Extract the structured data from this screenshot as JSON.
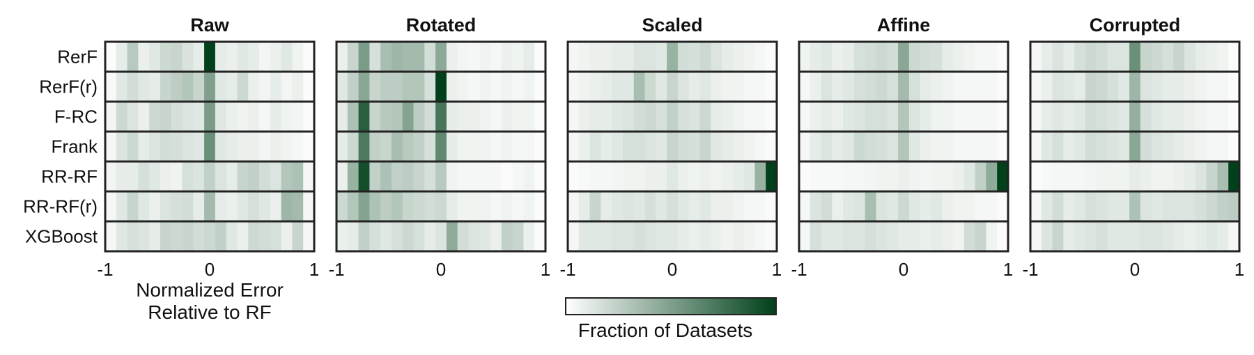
{
  "chart_data": {
    "type": "heatmap",
    "panels": [
      "Raw",
      "Rotated",
      "Scaled",
      "Affine",
      "Corrupted"
    ],
    "rows": [
      "RerF",
      "RerF(r)",
      "F-RC",
      "Frank",
      "RR-RF",
      "RR-RF(r)",
      "XGBoost"
    ],
    "x_ticks": [
      "-1",
      "0",
      "1"
    ],
    "xlim": [
      -1,
      1
    ],
    "n_bins": 19,
    "xlabel": "Normalized Error\nRelative to RF",
    "colorbar_label": "Fraction of Datasets",
    "colormap": [
      "#ffffff",
      "#00401a"
    ],
    "values": {
      "Raw": [
        [
          0.02,
          0.1,
          0.28,
          0.08,
          0.12,
          0.2,
          0.22,
          0.15,
          0.1,
          1.0,
          0.1,
          0.08,
          0.12,
          0.1,
          0.05,
          0.08,
          0.12,
          0.06,
          0.02
        ],
        [
          0.03,
          0.12,
          0.18,
          0.12,
          0.1,
          0.22,
          0.26,
          0.3,
          0.22,
          0.5,
          0.12,
          0.1,
          0.2,
          0.08,
          0.05,
          0.1,
          0.05,
          0.08,
          0.02
        ],
        [
          0.05,
          0.2,
          0.14,
          0.08,
          0.2,
          0.22,
          0.16,
          0.14,
          0.12,
          0.52,
          0.12,
          0.08,
          0.06,
          0.08,
          0.04,
          0.1,
          0.06,
          0.05,
          0.02
        ],
        [
          0.04,
          0.14,
          0.2,
          0.1,
          0.14,
          0.18,
          0.16,
          0.14,
          0.12,
          0.58,
          0.12,
          0.1,
          0.08,
          0.08,
          0.05,
          0.08,
          0.06,
          0.04,
          0.02
        ],
        [
          0.05,
          0.1,
          0.1,
          0.16,
          0.12,
          0.08,
          0.06,
          0.16,
          0.14,
          0.24,
          0.14,
          0.1,
          0.22,
          0.24,
          0.18,
          0.14,
          0.3,
          0.32,
          0.04
        ],
        [
          0.04,
          0.12,
          0.22,
          0.12,
          0.08,
          0.14,
          0.16,
          0.18,
          0.1,
          0.36,
          0.1,
          0.08,
          0.12,
          0.16,
          0.12,
          0.08,
          0.38,
          0.36,
          0.04
        ],
        [
          0.04,
          0.12,
          0.16,
          0.14,
          0.1,
          0.22,
          0.2,
          0.22,
          0.18,
          0.2,
          0.24,
          0.12,
          0.08,
          0.2,
          0.18,
          0.16,
          0.08,
          0.22,
          0.04
        ]
      ],
      "Rotated": [
        [
          0.08,
          0.22,
          0.52,
          0.16,
          0.34,
          0.38,
          0.36,
          0.36,
          0.18,
          0.45,
          0.08,
          0.05,
          0.04,
          0.06,
          0.04,
          0.08,
          0.06,
          0.1,
          0.02
        ],
        [
          0.12,
          0.24,
          0.46,
          0.22,
          0.26,
          0.26,
          0.3,
          0.3,
          0.16,
          1.0,
          0.08,
          0.06,
          0.04,
          0.06,
          0.04,
          0.06,
          0.04,
          0.06,
          0.02
        ],
        [
          0.1,
          0.32,
          0.84,
          0.22,
          0.28,
          0.3,
          0.48,
          0.26,
          0.18,
          0.72,
          0.1,
          0.08,
          0.08,
          0.06,
          0.04,
          0.08,
          0.06,
          0.06,
          0.02
        ],
        [
          0.1,
          0.2,
          0.7,
          0.24,
          0.22,
          0.34,
          0.28,
          0.24,
          0.16,
          0.62,
          0.1,
          0.06,
          0.06,
          0.06,
          0.04,
          0.06,
          0.04,
          0.04,
          0.02
        ],
        [
          0.08,
          0.4,
          0.92,
          0.24,
          0.32,
          0.24,
          0.26,
          0.22,
          0.16,
          0.28,
          0.06,
          0.04,
          0.04,
          0.04,
          0.04,
          0.02,
          0.04,
          0.06,
          0.02
        ],
        [
          0.2,
          0.3,
          0.48,
          0.32,
          0.26,
          0.3,
          0.22,
          0.2,
          0.18,
          0.2,
          0.1,
          0.06,
          0.06,
          0.06,
          0.04,
          0.06,
          0.04,
          0.06,
          0.02
        ],
        [
          0.08,
          0.1,
          0.24,
          0.16,
          0.12,
          0.16,
          0.2,
          0.16,
          0.1,
          0.14,
          0.44,
          0.18,
          0.14,
          0.12,
          0.08,
          0.24,
          0.22,
          0.08,
          0.02
        ]
      ],
      "Scaled": [
        [
          0.04,
          0.06,
          0.08,
          0.08,
          0.1,
          0.1,
          0.14,
          0.14,
          0.12,
          0.4,
          0.18,
          0.16,
          0.2,
          0.14,
          0.1,
          0.08,
          0.06,
          0.04,
          0.02
        ],
        [
          0.04,
          0.06,
          0.08,
          0.1,
          0.12,
          0.12,
          0.34,
          0.2,
          0.12,
          0.22,
          0.14,
          0.1,
          0.12,
          0.08,
          0.06,
          0.06,
          0.04,
          0.04,
          0.02
        ],
        [
          0.04,
          0.08,
          0.1,
          0.1,
          0.12,
          0.14,
          0.18,
          0.2,
          0.16,
          0.24,
          0.16,
          0.14,
          0.2,
          0.1,
          0.08,
          0.06,
          0.04,
          0.04,
          0.02
        ],
        [
          0.04,
          0.08,
          0.14,
          0.1,
          0.12,
          0.16,
          0.16,
          0.14,
          0.12,
          0.22,
          0.18,
          0.16,
          0.22,
          0.12,
          0.1,
          0.08,
          0.06,
          0.04,
          0.02
        ],
        [
          0.02,
          0.03,
          0.04,
          0.04,
          0.05,
          0.06,
          0.06,
          0.08,
          0.08,
          0.12,
          0.08,
          0.06,
          0.08,
          0.06,
          0.08,
          0.1,
          0.12,
          0.4,
          1.0
        ],
        [
          0.04,
          0.1,
          0.22,
          0.1,
          0.12,
          0.14,
          0.12,
          0.16,
          0.12,
          0.16,
          0.12,
          0.1,
          0.12,
          0.08,
          0.08,
          0.06,
          0.04,
          0.04,
          0.02
        ],
        [
          0.04,
          0.12,
          0.12,
          0.12,
          0.14,
          0.14,
          0.16,
          0.14,
          0.12,
          0.12,
          0.1,
          0.08,
          0.1,
          0.08,
          0.06,
          0.08,
          0.06,
          0.04,
          0.02
        ]
      ],
      "Affine": [
        [
          0.06,
          0.1,
          0.12,
          0.08,
          0.1,
          0.16,
          0.18,
          0.2,
          0.18,
          0.46,
          0.2,
          0.18,
          0.16,
          0.1,
          0.08,
          0.06,
          0.04,
          0.04,
          0.02
        ],
        [
          0.04,
          0.08,
          0.14,
          0.1,
          0.12,
          0.16,
          0.18,
          0.2,
          0.16,
          0.36,
          0.16,
          0.1,
          0.08,
          0.06,
          0.04,
          0.04,
          0.04,
          0.04,
          0.02
        ],
        [
          0.04,
          0.08,
          0.1,
          0.08,
          0.12,
          0.14,
          0.16,
          0.16,
          0.14,
          0.3,
          0.14,
          0.1,
          0.06,
          0.06,
          0.04,
          0.04,
          0.04,
          0.04,
          0.02
        ],
        [
          0.04,
          0.1,
          0.14,
          0.1,
          0.12,
          0.2,
          0.18,
          0.16,
          0.14,
          0.3,
          0.12,
          0.08,
          0.06,
          0.06,
          0.04,
          0.04,
          0.04,
          0.04,
          0.02
        ],
        [
          0.02,
          0.03,
          0.03,
          0.03,
          0.04,
          0.04,
          0.05,
          0.06,
          0.06,
          0.08,
          0.06,
          0.05,
          0.06,
          0.06,
          0.08,
          0.12,
          0.24,
          0.44,
          1.0
        ],
        [
          0.04,
          0.14,
          0.18,
          0.08,
          0.12,
          0.14,
          0.34,
          0.14,
          0.12,
          0.2,
          0.12,
          0.1,
          0.12,
          0.08,
          0.06,
          0.06,
          0.04,
          0.04,
          0.02
        ],
        [
          0.04,
          0.16,
          0.12,
          0.12,
          0.14,
          0.14,
          0.16,
          0.14,
          0.12,
          0.1,
          0.1,
          0.08,
          0.1,
          0.08,
          0.06,
          0.18,
          0.22,
          0.06,
          0.02
        ]
      ],
      "Corrupted": [
        [
          0.04,
          0.1,
          0.14,
          0.1,
          0.16,
          0.2,
          0.18,
          0.14,
          0.14,
          0.58,
          0.22,
          0.2,
          0.16,
          0.22,
          0.14,
          0.1,
          0.08,
          0.06,
          0.02
        ],
        [
          0.04,
          0.08,
          0.14,
          0.12,
          0.1,
          0.22,
          0.2,
          0.16,
          0.12,
          0.38,
          0.14,
          0.12,
          0.1,
          0.1,
          0.08,
          0.06,
          0.04,
          0.04,
          0.02
        ],
        [
          0.04,
          0.1,
          0.12,
          0.1,
          0.12,
          0.18,
          0.16,
          0.14,
          0.12,
          0.42,
          0.16,
          0.12,
          0.1,
          0.1,
          0.08,
          0.06,
          0.04,
          0.04,
          0.02
        ],
        [
          0.04,
          0.12,
          0.16,
          0.1,
          0.12,
          0.18,
          0.16,
          0.14,
          0.12,
          0.46,
          0.18,
          0.14,
          0.12,
          0.1,
          0.08,
          0.06,
          0.04,
          0.04,
          0.02
        ],
        [
          0.02,
          0.03,
          0.04,
          0.04,
          0.04,
          0.05,
          0.06,
          0.06,
          0.06,
          0.1,
          0.08,
          0.06,
          0.06,
          0.08,
          0.1,
          0.14,
          0.22,
          0.34,
          1.0
        ],
        [
          0.04,
          0.12,
          0.18,
          0.1,
          0.12,
          0.16,
          0.14,
          0.12,
          0.12,
          0.32,
          0.14,
          0.12,
          0.14,
          0.14,
          0.14,
          0.16,
          0.2,
          0.24,
          0.26
        ],
        [
          0.04,
          0.14,
          0.22,
          0.1,
          0.12,
          0.14,
          0.16,
          0.12,
          0.12,
          0.12,
          0.14,
          0.14,
          0.12,
          0.1,
          0.08,
          0.1,
          0.12,
          0.1,
          0.04
        ]
      ]
    }
  }
}
